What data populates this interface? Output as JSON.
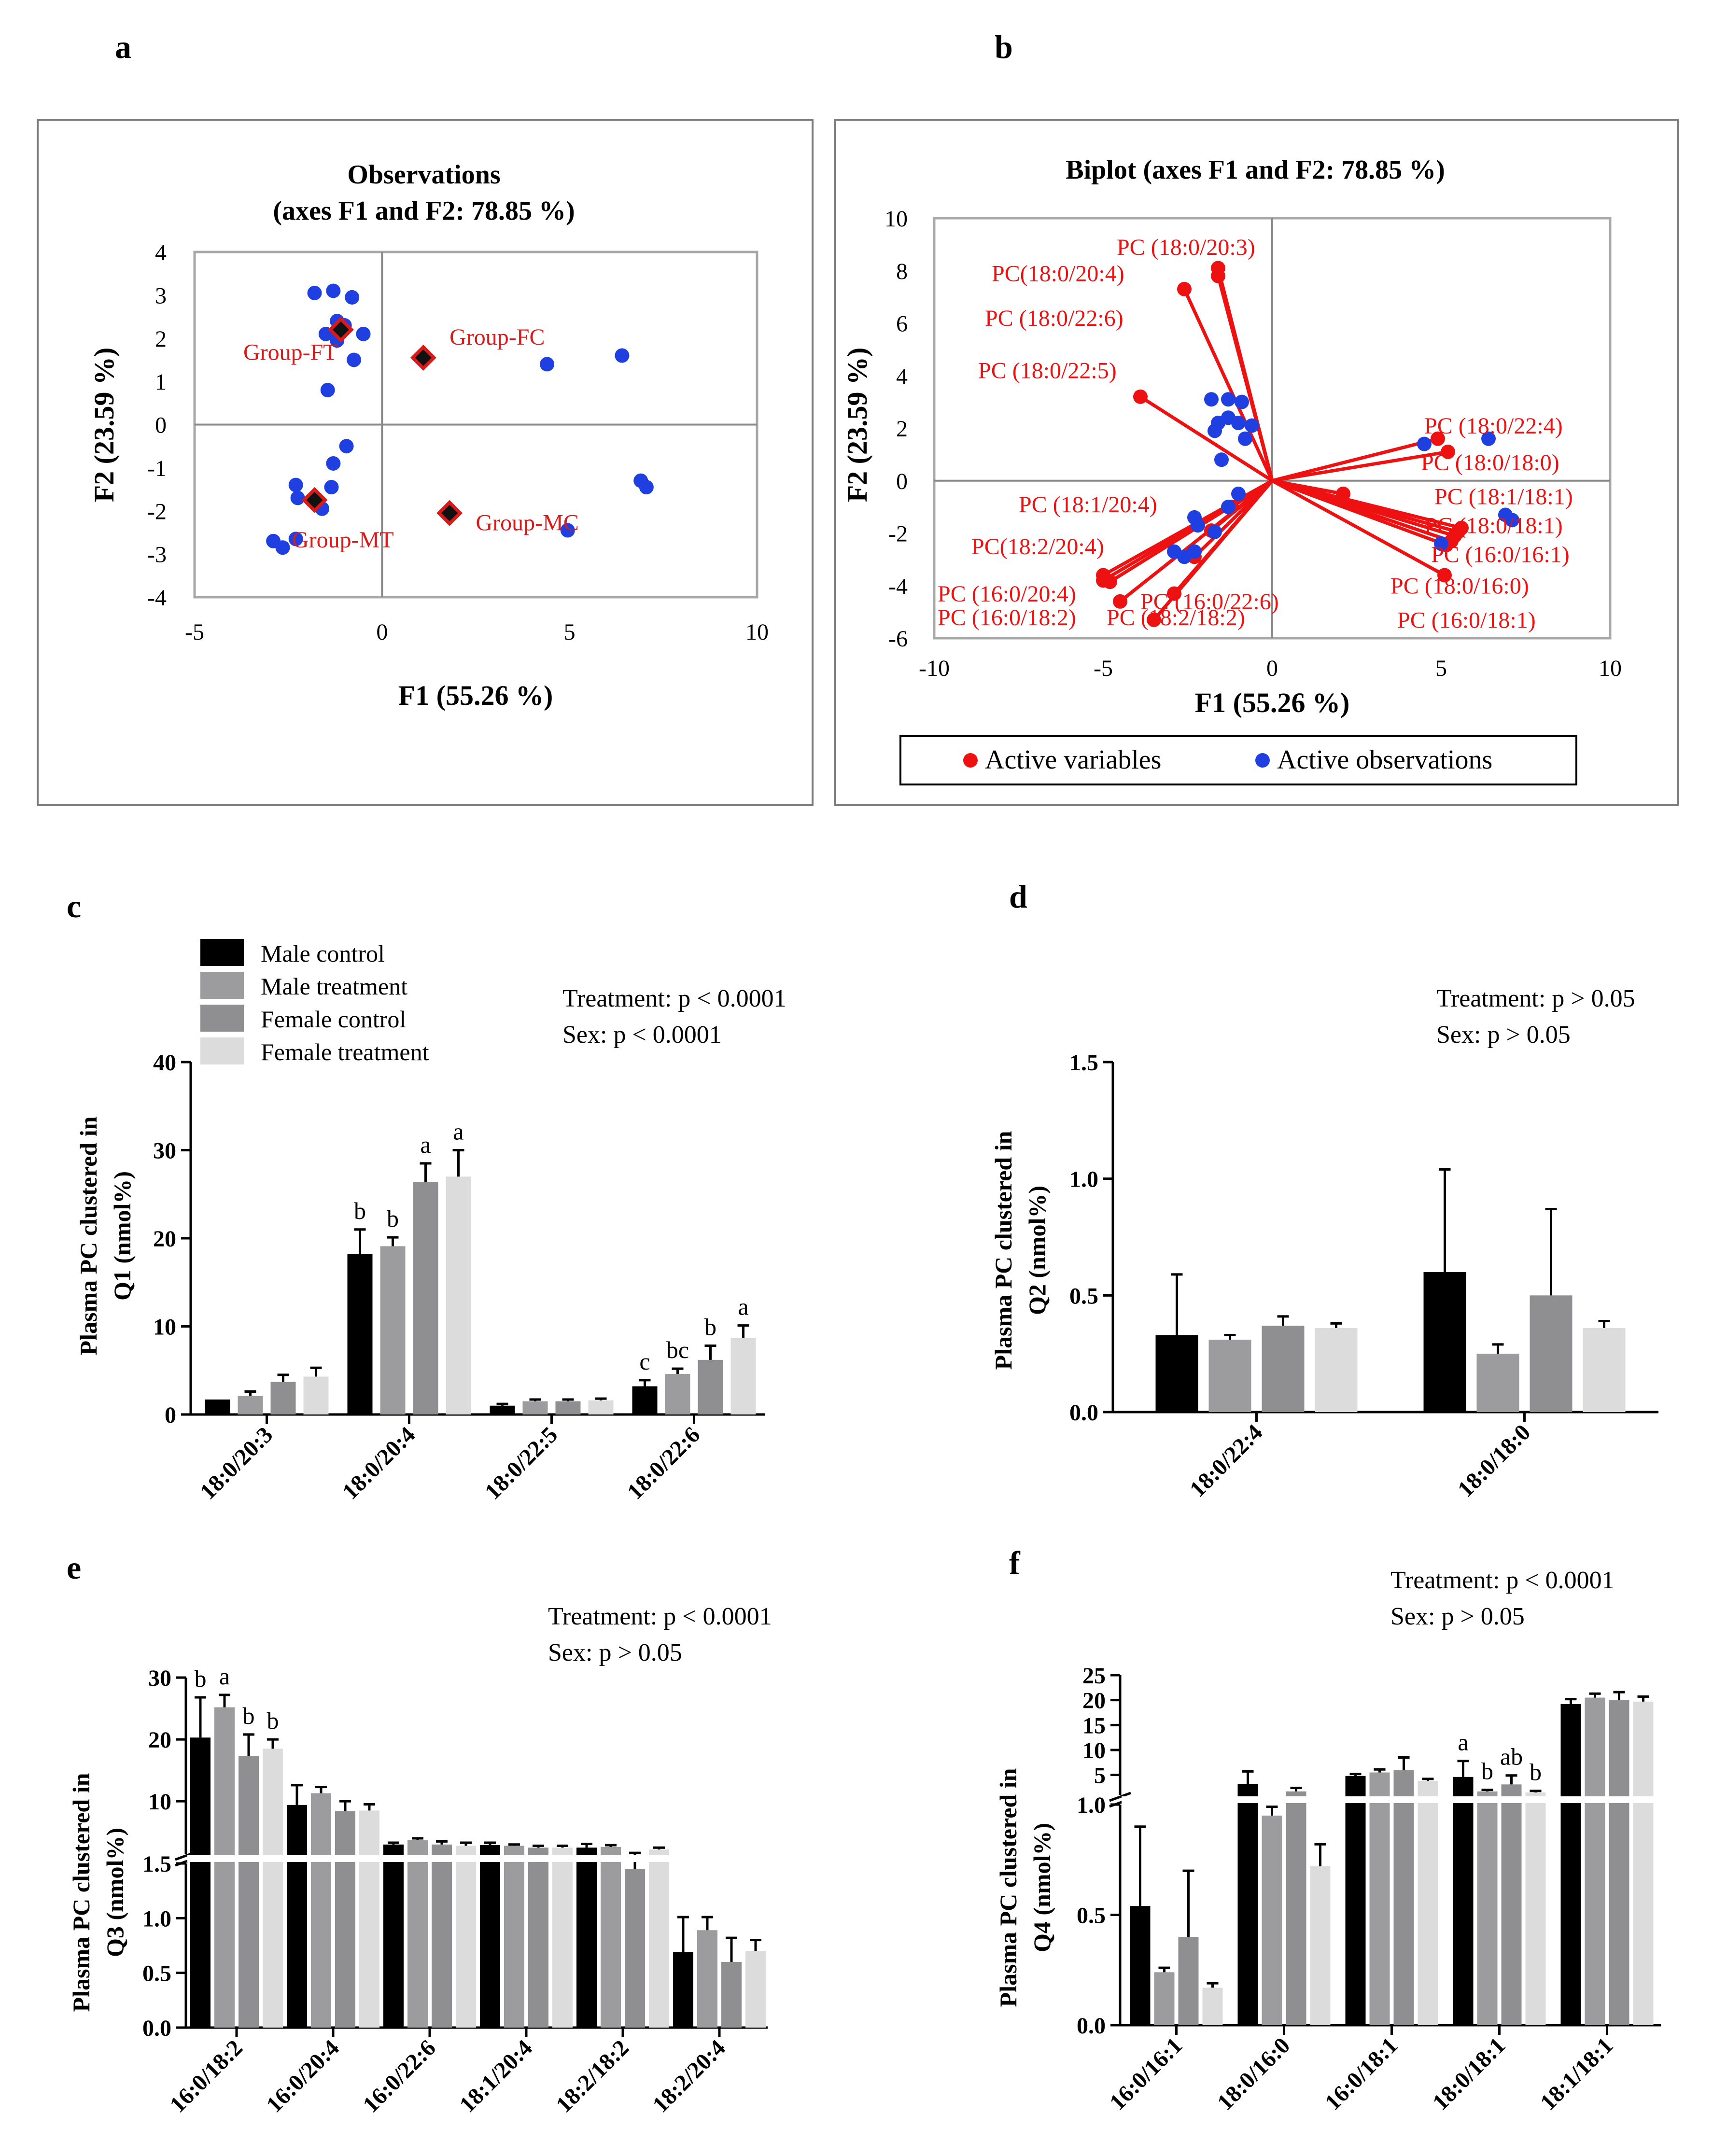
{
  "panel_labels": {
    "a": "a",
    "b": "b",
    "c": "c",
    "d": "d",
    "e": "e",
    "f": "f"
  },
  "colors": {
    "male_control": "#000000",
    "male_treatment": "#9c9c9e",
    "female_control": "#8f8f91",
    "female_treatment": "#dcdcdc",
    "observation": "#1f3fe0",
    "variable": "#ee1111",
    "group_marker": "#d91a1a"
  },
  "legend": {
    "male_control": "Male control",
    "male_treatment": "Male treatment",
    "female_control": "Female control",
    "female_treatment": "Female treatment"
  },
  "chart_data": [
    {
      "id": "a",
      "type": "scatter",
      "title_line1": "Observations",
      "title_line2": "(axes F1 and F2: 78.85 %)",
      "xlabel": "F1 (55.26 %)",
      "ylabel": "F2 (23.59 %)",
      "xlim": [
        -5,
        10
      ],
      "ylim": [
        -4,
        4
      ],
      "xticks": [
        -5,
        0,
        5,
        10
      ],
      "yticks": [
        -4,
        -3,
        -2,
        -1,
        0,
        1,
        2,
        3,
        4
      ],
      "observations": [
        [
          -1.8,
          3.05
        ],
        [
          -1.3,
          3.1
        ],
        [
          -0.8,
          2.95
        ],
        [
          -1.2,
          2.4
        ],
        [
          -1.0,
          2.3
        ],
        [
          -1.5,
          2.1
        ],
        [
          -1.2,
          1.95
        ],
        [
          -0.5,
          2.1
        ],
        [
          -0.75,
          1.5
        ],
        [
          -1.45,
          0.8
        ],
        [
          4.4,
          1.4
        ],
        [
          6.4,
          1.6
        ],
        [
          -0.95,
          -0.5
        ],
        [
          -1.3,
          -0.9
        ],
        [
          -2.3,
          -1.4
        ],
        [
          -2.25,
          -1.7
        ],
        [
          -1.35,
          -1.45
        ],
        [
          -1.6,
          -1.95
        ],
        [
          -2.9,
          -2.7
        ],
        [
          -2.65,
          -2.85
        ],
        [
          -2.3,
          -2.65
        ],
        [
          4.95,
          -2.45
        ],
        [
          6.9,
          -1.3
        ],
        [
          7.05,
          -1.45
        ]
      ],
      "groups": [
        {
          "label": "Group-FT",
          "x": -1.1,
          "y": 2.2
        },
        {
          "label": "Group-FC",
          "x": 1.1,
          "y": 1.55
        },
        {
          "label": "Group-MT",
          "x": -1.8,
          "y": -1.75
        },
        {
          "label": "Group-MC",
          "x": 1.8,
          "y": -2.05
        }
      ]
    },
    {
      "id": "b",
      "type": "biplot",
      "title": "Biplot (axes F1 and F2: 78.85 %)",
      "xlabel": "F1 (55.26 %)",
      "ylabel": "F2 (23.59 %)",
      "xlim": [
        -10,
        10
      ],
      "ylim": [
        -6,
        10
      ],
      "xticks": [
        -10,
        -5,
        0,
        5,
        10
      ],
      "yticks": [
        -6,
        -4,
        -2,
        0,
        2,
        4,
        6,
        8,
        10
      ],
      "legend": {
        "variables": "Active variables",
        "observations": "Active observations"
      },
      "variables": [
        {
          "x": -1.6,
          "y": 8.1
        },
        {
          "x": -1.6,
          "y": 7.8
        },
        {
          "x": -2.6,
          "y": 7.3
        },
        {
          "x": -3.9,
          "y": 3.2
        },
        {
          "x": 4.9,
          "y": 1.6
        },
        {
          "x": 5.2,
          "y": 1.1
        },
        {
          "x": 2.1,
          "y": -0.5
        },
        {
          "x": 5.6,
          "y": -1.8
        },
        {
          "x": 5.5,
          "y": -1.95
        },
        {
          "x": 5.4,
          "y": -2.1
        },
        {
          "x": 5.3,
          "y": -2.3
        },
        {
          "x": 5.15,
          "y": -2.45
        },
        {
          "x": 5.1,
          "y": -3.6
        },
        {
          "x": -5.0,
          "y": -3.6
        },
        {
          "x": -5.0,
          "y": -3.8
        },
        {
          "x": -4.8,
          "y": -3.85
        },
        {
          "x": -4.5,
          "y": -4.6
        },
        {
          "x": -3.5,
          "y": -5.3
        },
        {
          "x": -2.9,
          "y": -4.3
        },
        {
          "x": -2.3,
          "y": -2.9
        },
        {
          "x": -1.8,
          "y": -1.9
        },
        {
          "x": -1.2,
          "y": -1.0
        }
      ],
      "variable_labels": [
        {
          "text": "PC (18:0/20:3)",
          "x": -4.6,
          "y": 8.6
        },
        {
          "text": "PC(18:0/20:4)",
          "x": -8.3,
          "y": 7.6
        },
        {
          "text": "PC (18:0/22:6)",
          "x": -8.5,
          "y": 5.9
        },
        {
          "text": "PC (18:0/22:5)",
          "x": -8.7,
          "y": 3.9
        },
        {
          "text": "PC (18:0/22:4)",
          "x": 4.5,
          "y": 1.8
        },
        {
          "text": "PC (18:0/18:0)",
          "x": 4.4,
          "y": 0.4
        },
        {
          "text": "PC (18:1/18:1)",
          "x": 4.8,
          "y": -0.9
        },
        {
          "text": "PC (18:0/18:1)",
          "x": 4.5,
          "y": -2.0
        },
        {
          "text": "PC (16:0/16:1)",
          "x": 4.7,
          "y": -3.1
        },
        {
          "text": "PC (18:0/16:0)",
          "x": 3.5,
          "y": -4.3
        },
        {
          "text": "PC (16:0/18:1)",
          "x": 3.7,
          "y": -5.6
        },
        {
          "text": "PC (18:1/20:4)",
          "x": -7.5,
          "y": -1.2
        },
        {
          "text": "PC(18:2/20:4)",
          "x": -8.9,
          "y": -2.8
        },
        {
          "text": "PC (16:0/20:4)",
          "x": -9.9,
          "y": -4.6
        },
        {
          "text": "PC (16:0/18:2)",
          "x": -9.9,
          "y": -5.5
        },
        {
          "text": "PC (16:0/22:6)",
          "x": -3.9,
          "y": -4.9
        },
        {
          "text": "PC (18:2/18:2)",
          "x": -4.9,
          "y": -5.5
        }
      ],
      "observations": [
        [
          -1.8,
          3.1
        ],
        [
          -1.3,
          3.1
        ],
        [
          -0.9,
          3.0
        ],
        [
          -1.3,
          2.4
        ],
        [
          -1.6,
          2.2
        ],
        [
          -1.0,
          2.2
        ],
        [
          -0.6,
          2.1
        ],
        [
          -1.7,
          1.9
        ],
        [
          -0.8,
          1.6
        ],
        [
          -1.5,
          0.8
        ],
        [
          4.5,
          1.4
        ],
        [
          6.4,
          1.6
        ],
        [
          -1.0,
          -0.5
        ],
        [
          -1.3,
          -1.0
        ],
        [
          -2.3,
          -1.4
        ],
        [
          -2.2,
          -1.7
        ],
        [
          -1.7,
          -1.95
        ],
        [
          -2.9,
          -2.7
        ],
        [
          -2.6,
          -2.9
        ],
        [
          -2.3,
          -2.7
        ],
        [
          5.0,
          -2.4
        ],
        [
          6.9,
          -1.3
        ],
        [
          7.1,
          -1.5
        ]
      ]
    },
    {
      "id": "c",
      "type": "bar",
      "ylabel_line1": "Plasma PC clustered in",
      "ylabel_line2": "Q1 (nmol%)",
      "stats_line1": "Treatment:  p < 0.0001",
      "stats_line2": "Sex: p < 0.0001",
      "ylim": [
        0,
        40
      ],
      "yticks": [
        0,
        10,
        20,
        30,
        40
      ],
      "categories": [
        "18:0/20:3",
        "18:0/20:4",
        "18:0/22:5",
        "18:0/22:6"
      ],
      "series": [
        {
          "name": "Male control",
          "values": [
            1.7,
            18.2,
            1.0,
            3.2
          ],
          "err": [
            0,
            2.8,
            0.2,
            0.7
          ]
        },
        {
          "name": "Male treatment",
          "values": [
            2.1,
            19.1,
            1.5,
            4.6
          ],
          "err": [
            0.5,
            1.0,
            0.2,
            0.6
          ]
        },
        {
          "name": "Female control",
          "values": [
            3.7,
            26.4,
            1.5,
            6.2
          ],
          "err": [
            0.8,
            2.1,
            0.2,
            1.6
          ]
        },
        {
          "name": "Female treatment",
          "values": [
            4.3,
            27.0,
            1.6,
            8.7
          ],
          "err": [
            1.0,
            3.0,
            0.2,
            1.4
          ]
        }
      ],
      "letters": [
        [
          "",
          "b",
          "",
          "c"
        ],
        [
          "",
          "b",
          "",
          "bc"
        ],
        [
          "",
          "a",
          "",
          "b"
        ],
        [
          "",
          "a",
          "",
          "a"
        ]
      ]
    },
    {
      "id": "d",
      "type": "bar",
      "ylabel_line1": "Plasma PC clustered in",
      "ylabel_line2": "Q2 (nmol%)",
      "stats_line1": "Treatment:  p > 0.05",
      "stats_line2": "Sex: p > 0.05",
      "ylim": [
        0,
        1.5
      ],
      "yticks": [
        "0.0",
        "0.5",
        "1.0",
        "1.5"
      ],
      "categories": [
        "18:0/22:4",
        "18:0/18:0"
      ],
      "series": [
        {
          "name": "Male control",
          "values": [
            0.33,
            0.6
          ],
          "err": [
            0.26,
            0.44
          ]
        },
        {
          "name": "Male treatment",
          "values": [
            0.31,
            0.25
          ],
          "err": [
            0.02,
            0.04
          ]
        },
        {
          "name": "Female control",
          "values": [
            0.37,
            0.5
          ],
          "err": [
            0.04,
            0.37
          ]
        },
        {
          "name": "Female treatment",
          "values": [
            0.36,
            0.36
          ],
          "err": [
            0.02,
            0.03
          ]
        }
      ]
    },
    {
      "id": "e",
      "type": "bar",
      "broken_axis": true,
      "ylabel_line1": "Plasma PC clustered in",
      "ylabel_line2": "Q3 (nmol%)",
      "stats_line1": "Treatment: p < 0.0001",
      "stats_line2": "Sex: p > 0.05",
      "lower_range": [
        0,
        1.5
      ],
      "upper_range": [
        1.5,
        30
      ],
      "lower_ticks": [
        "0.0",
        "0.5",
        "1.0",
        "1.5"
      ],
      "upper_ticks": [
        "10",
        "20",
        "30"
      ],
      "categories": [
        "16:0/18:2",
        "16:0/20:4",
        "16:0/22:6",
        "18:1/20:4",
        "18:2/18:2",
        "18:2/20:4"
      ],
      "series": [
        {
          "name": "Male control",
          "values": [
            20.3,
            9.4,
            3.0,
            2.9,
            2.5,
            0.69
          ],
          "err": [
            6.5,
            3.2,
            0.3,
            0.4,
            0.6,
            0.32
          ]
        },
        {
          "name": "Male treatment",
          "values": [
            25.2,
            11.3,
            3.7,
            2.8,
            2.6,
            0.89
          ],
          "err": [
            2.0,
            1.0,
            0.3,
            0.2,
            0.3,
            0.12
          ]
        },
        {
          "name": "Female control",
          "values": [
            17.3,
            8.4,
            3.0,
            2.5,
            1.45,
            0.6
          ],
          "err": [
            3.5,
            1.6,
            0.5,
            0.3,
            0.2,
            0.22
          ]
        },
        {
          "name": "Female treatment",
          "values": [
            18.5,
            8.5,
            2.8,
            2.5,
            2.2,
            0.7
          ],
          "err": [
            1.5,
            1.0,
            0.5,
            0.3,
            0.3,
            0.1
          ]
        }
      ],
      "letters": [
        [
          "b",
          "",
          "",
          "",
          "",
          ""
        ],
        [
          "a",
          "",
          "",
          "",
          "",
          ""
        ],
        [
          "b",
          "",
          "",
          "",
          "",
          ""
        ],
        [
          "b",
          "",
          "",
          "",
          "",
          ""
        ]
      ]
    },
    {
      "id": "f",
      "type": "bar",
      "broken_axis": true,
      "ylabel_line1": "Plasma PC clustered in",
      "ylabel_line2": "Q4 (nmol%)",
      "stats_line1": "Treatment:  p < 0.0001",
      "stats_line2": "Sex: p > 0.05",
      "lower_range": [
        0,
        1
      ],
      "upper_range": [
        1,
        25
      ],
      "lower_ticks": [
        "0.0",
        "0.5",
        "1.0"
      ],
      "upper_ticks": [
        "5",
        "10",
        "15",
        "20",
        "25"
      ],
      "categories": [
        "16:0/16:1",
        "18:0/16:0",
        "16:0/18:1",
        "18:0/18:1",
        "18:1/18:1"
      ],
      "series": [
        {
          "name": "Male control",
          "values": [
            0.54,
            3.2,
            4.8,
            4.6,
            19.2
          ],
          "err": [
            0.36,
            2.5,
            0.4,
            3.2,
            1.0
          ]
        },
        {
          "name": "Male treatment",
          "values": [
            0.24,
            0.95,
            5.5,
            1.7,
            20.5
          ],
          "err": [
            0.02,
            0.04,
            0.6,
            0.3,
            0.8
          ]
        },
        {
          "name": "Female control",
          "values": [
            0.4,
            1.7,
            6.0,
            3.1,
            20.0
          ],
          "err": [
            0.3,
            0.7,
            2.5,
            1.8,
            1.6
          ]
        },
        {
          "name": "Female treatment",
          "values": [
            0.17,
            0.72,
            3.8,
            1.5,
            19.7
          ],
          "err": [
            0.02,
            0.1,
            0.4,
            0.3,
            1.0
          ]
        }
      ],
      "letters": [
        [
          "",
          "",
          "",
          "a",
          ""
        ],
        [
          "",
          "",
          "",
          "b",
          ""
        ],
        [
          "",
          "",
          "",
          "ab",
          ""
        ],
        [
          "",
          "",
          "",
          "b",
          ""
        ]
      ]
    }
  ]
}
